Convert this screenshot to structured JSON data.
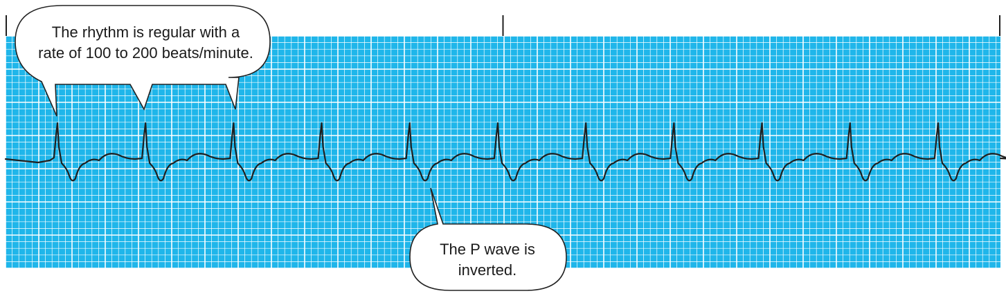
{
  "colors": {
    "paper": "#1fb6ea",
    "grid_line": "#ffffff",
    "trace": "#1f1f1f",
    "callout_fill": "#ffffff",
    "callout_stroke": "#222222"
  },
  "strip": {
    "timing_marks": 3,
    "beats": 11,
    "p_wave": "inverted",
    "rhythm": "regular"
  },
  "callouts": {
    "rhythm": {
      "text": "The rhythm is regular with a\nrate of 100 to 200 beats/minute."
    },
    "p_wave": {
      "text": "The P wave is\ninverted."
    }
  }
}
